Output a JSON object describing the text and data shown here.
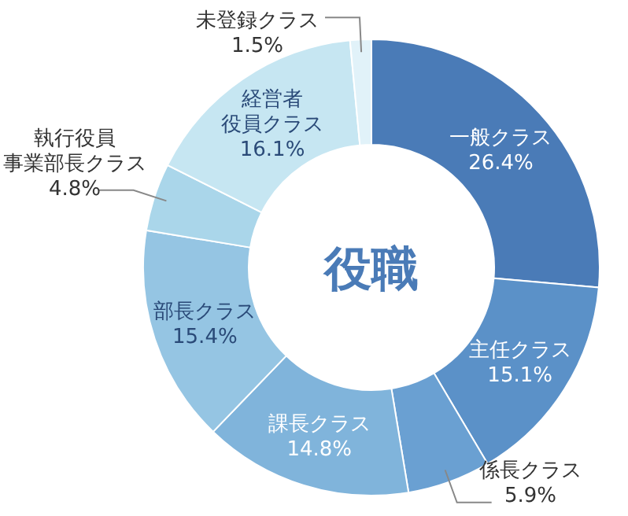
{
  "chart_data": {
    "type": "donut",
    "title": "役職",
    "value_labels": [
      "26.4%",
      "15.1%",
      "5.9%",
      "14.8%",
      "15.4%",
      "4.8%",
      "16.1%",
      "1.5%"
    ],
    "categories": [
      "一般クラス",
      "主任クラス",
      "係長クラス",
      "課長クラス",
      "部長クラス",
      "執行役員事業部長クラス",
      "経営者役員クラス",
      "未登録クラス"
    ],
    "values": [
      26.4,
      15.1,
      5.9,
      14.8,
      15.4,
      4.8,
      16.1,
      1.5
    ],
    "colors": [
      "#4a7bb7",
      "#5b91c8",
      "#6aa0d2",
      "#80b4db",
      "#95c5e3",
      "#aad6ea",
      "#c6e6f2",
      "#e1f2f9"
    ]
  }
}
